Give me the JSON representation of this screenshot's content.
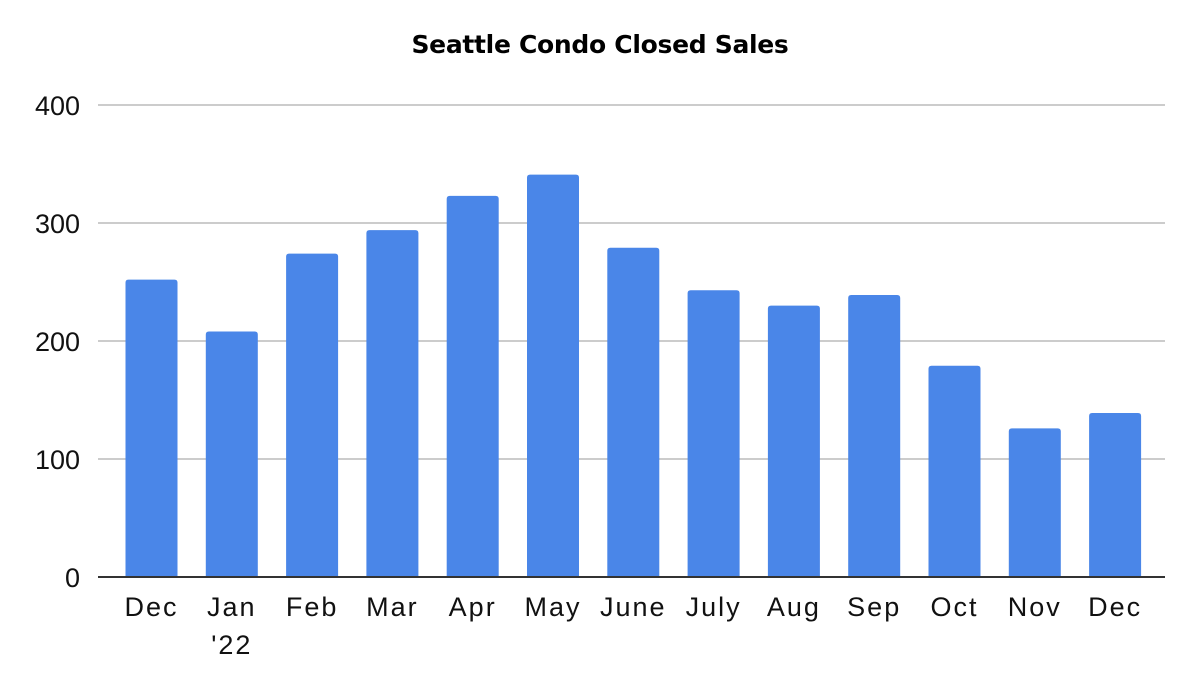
{
  "chart_data": {
    "type": "bar",
    "title": "Seattle Condo Closed Sales",
    "xlabel": "",
    "ylabel": "",
    "categories": [
      "Dec",
      "Jan '22",
      "Feb",
      "Mar",
      "Apr",
      "May",
      "June",
      "July",
      "Aug",
      "Sep",
      "Oct",
      "Nov",
      "Dec"
    ],
    "category_label_lines": [
      [
        "Dec"
      ],
      [
        "Jan",
        "'22"
      ],
      [
        "Feb"
      ],
      [
        "Mar"
      ],
      [
        "Apr"
      ],
      [
        "May"
      ],
      [
        "June"
      ],
      [
        "July"
      ],
      [
        "Aug"
      ],
      [
        "Sep"
      ],
      [
        "Oct"
      ],
      [
        "Nov"
      ],
      [
        "Dec"
      ]
    ],
    "values": [
      252,
      208,
      274,
      294,
      323,
      341,
      279,
      243,
      230,
      239,
      179,
      126,
      139
    ],
    "ylim": [
      0,
      400
    ],
    "yticks": [
      0,
      100,
      200,
      300,
      400
    ],
    "grid": true,
    "legend": "none",
    "colors": {
      "bar": "#4a86e8",
      "grid": "#cccccc",
      "axis": "#333333"
    }
  }
}
